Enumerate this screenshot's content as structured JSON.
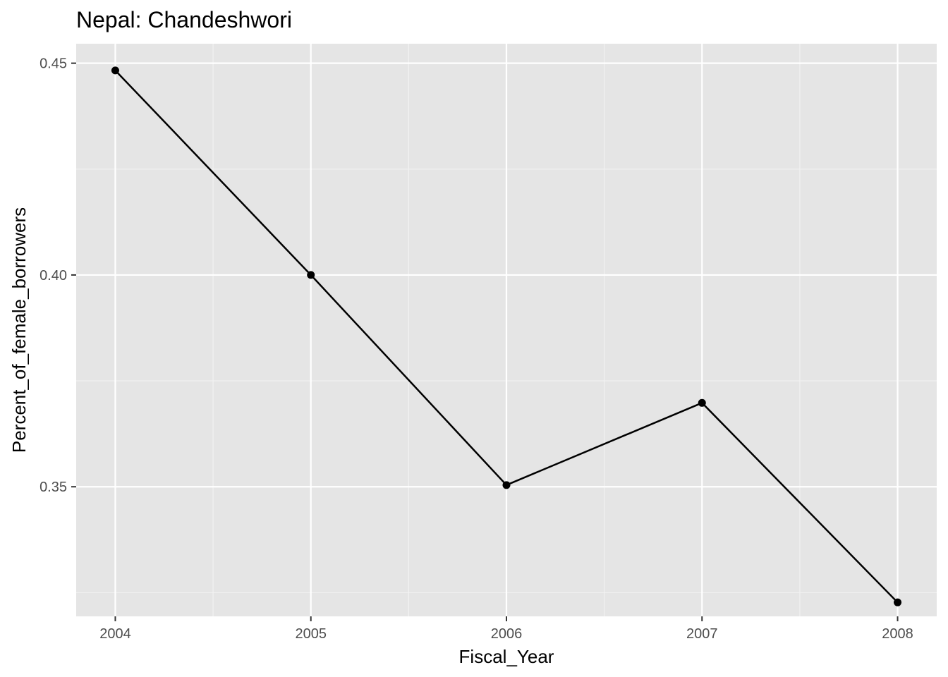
{
  "chart_data": {
    "type": "line",
    "title": "Nepal:  Chandeshwori",
    "xlabel": "Fiscal_Year",
    "ylabel": "Percent_of_female_borrowers",
    "x": [
      2004,
      2005,
      2006,
      2007,
      2008
    ],
    "series": [
      {
        "values": [
          0.4483,
          0.4,
          0.3504,
          0.3698,
          0.3227
        ]
      }
    ],
    "xticks": [
      "2004",
      "2005",
      "2006",
      "2007",
      "2008"
    ],
    "yticks": [
      "0.35",
      "0.40",
      "0.45"
    ],
    "xlim": [
      2003.8,
      2008.2
    ],
    "ylim": [
      0.3194,
      0.4546
    ],
    "grid": true,
    "legend": "none",
    "colors": {
      "panel": "#e5e5e5",
      "grid_major": "#ffffff",
      "grid_minor": "#f2f2f2",
      "line": "#000000",
      "tick_text": "#4d4d4d"
    }
  }
}
